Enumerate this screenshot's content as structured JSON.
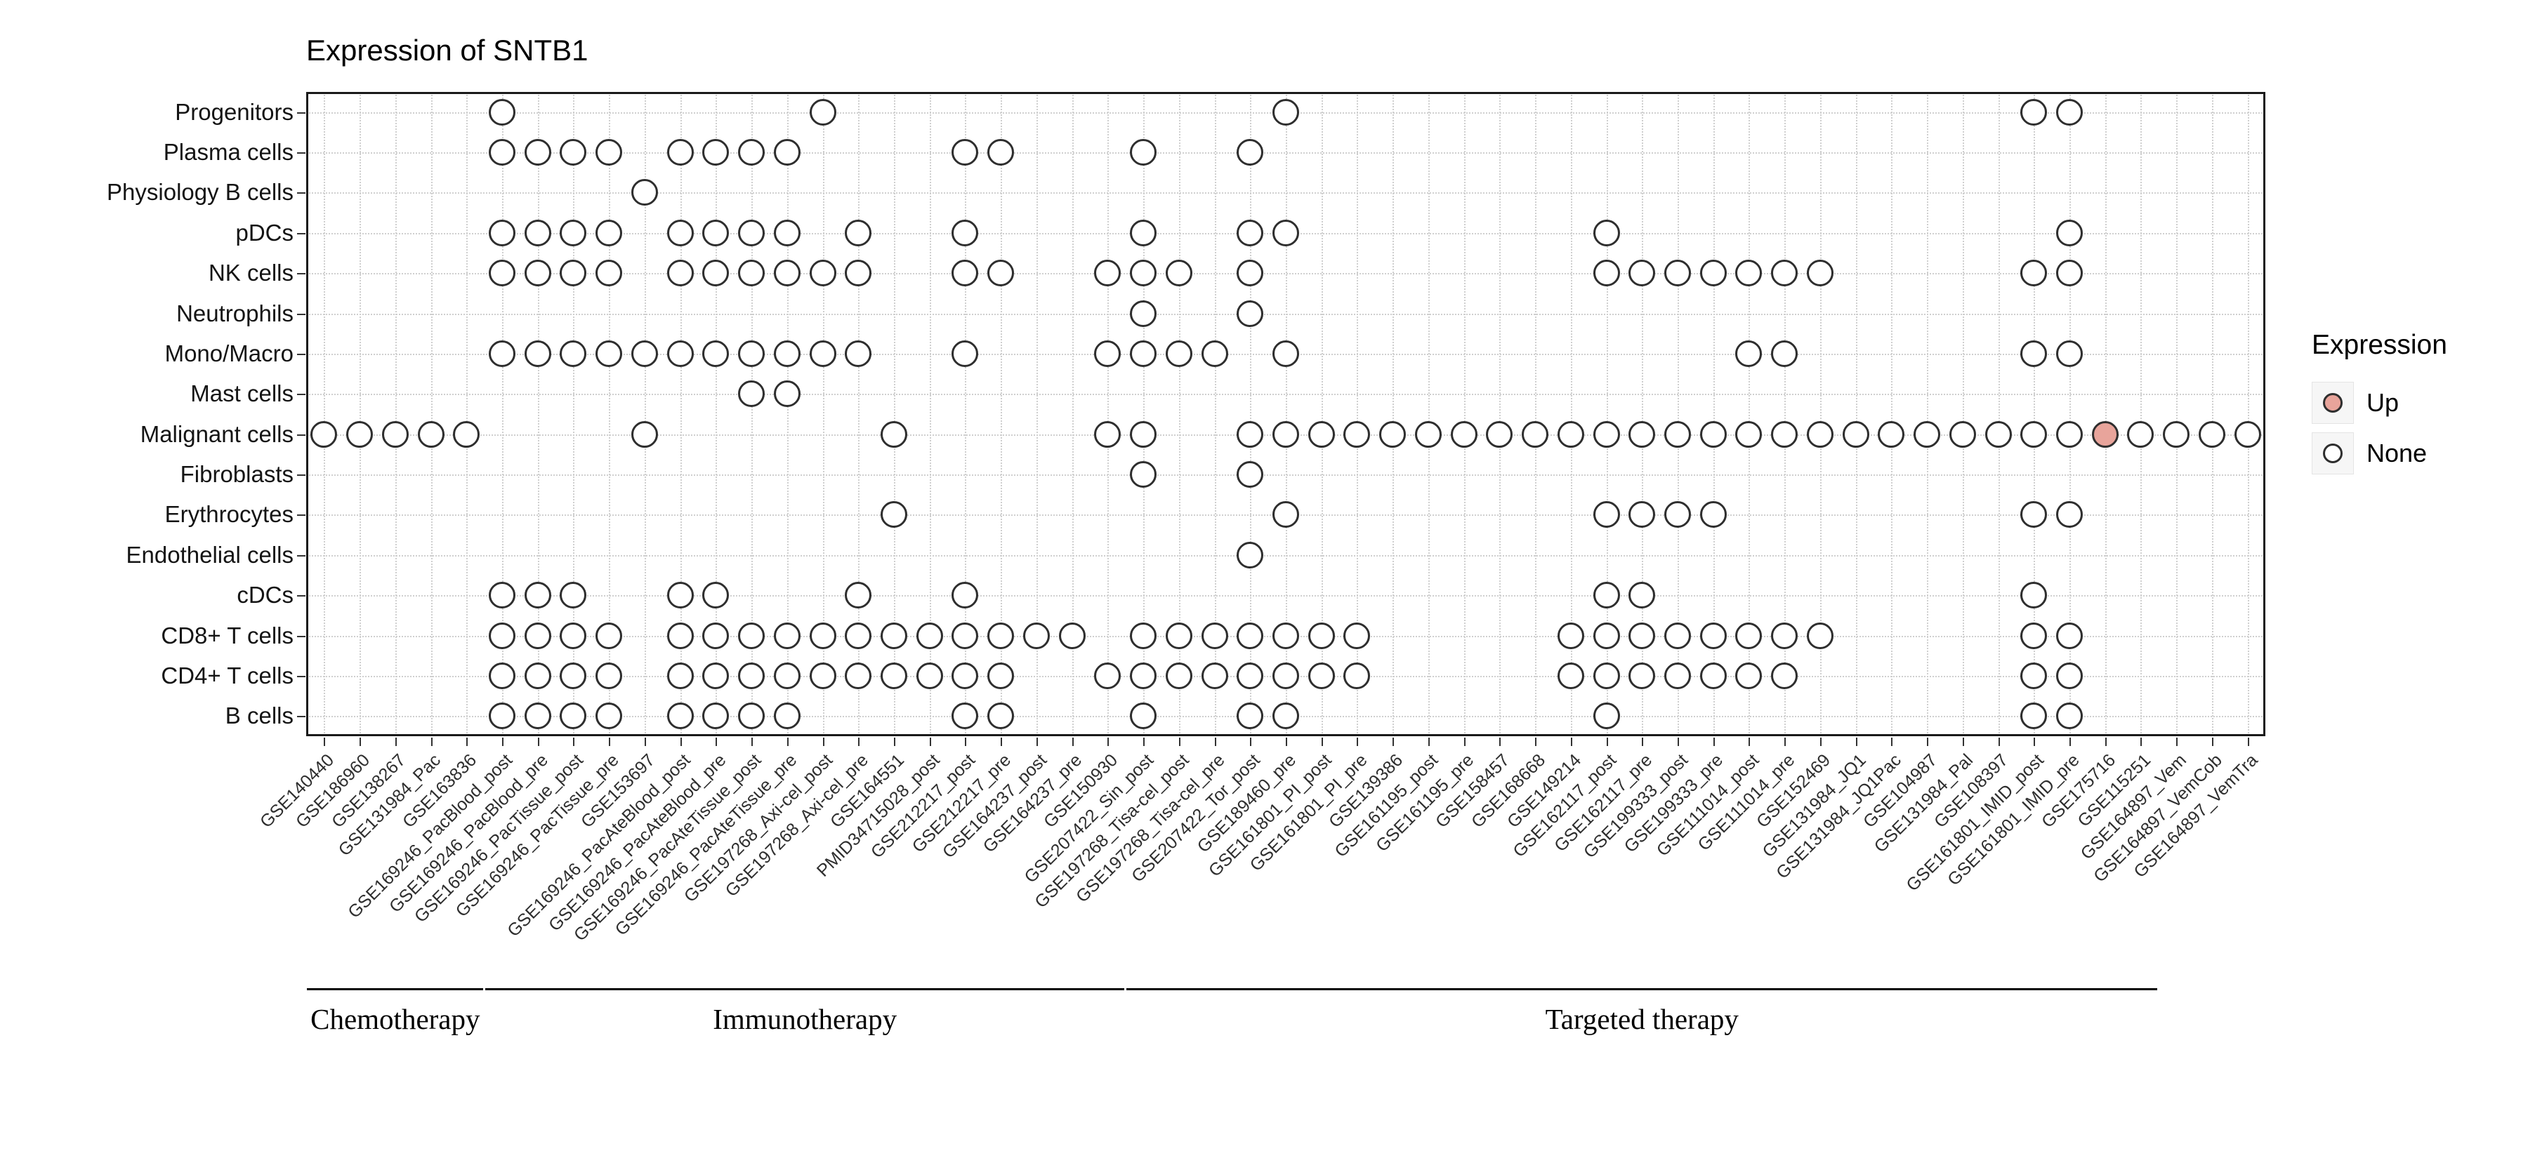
{
  "title": "Expression of SNTB1",
  "legend": {
    "title": "Expression",
    "items": [
      {
        "label": "Up",
        "color": "#E8A49B",
        "filled": true
      },
      {
        "label": "None",
        "color": "#FFFFFF",
        "filled": false
      }
    ]
  },
  "chart_data": {
    "type": "heatmap",
    "subtype": "dot-matrix",
    "title": "Expression of SNTB1",
    "xlabel": "",
    "ylabel": "",
    "grid": true,
    "legend_position": "right",
    "rows": [
      "Progenitors",
      "Plasma cells",
      "Physiology B cells",
      "pDCs",
      "NK cells",
      "Neutrophils",
      "Mono/Macro",
      "Mast cells",
      "Malignant cells",
      "Fibroblasts",
      "Erythrocytes",
      "Endothelial cells",
      "cDCs",
      "CD8+ T cells",
      "CD4+ T cells",
      "B cells"
    ],
    "columns": [
      "GSE140440",
      "GSE186960",
      "GSE138267",
      "GSE131984_Pac",
      "GSE163836",
      "GSE169246_PacBlood_post",
      "GSE169246_PacBlood_pre",
      "GSE169246_PacTissue_post",
      "GSE169246_PacTissue_pre",
      "GSE153697",
      "GSE169246_PacAteBlood_post",
      "GSE169246_PacAteBlood_pre",
      "GSE169246_PacAteTissue_post",
      "GSE169246_PacAteTissue_pre",
      "GSE197268_Axi-cel_post",
      "GSE197268_Axi-cel_pre",
      "GSE164551",
      "PMID34715028_post",
      "GSE212217_post",
      "GSE212217_pre",
      "GSE164237_post",
      "GSE164237_pre",
      "GSE150930",
      "GSE207422_Sin_post",
      "GSE197268_Tisa-cel_post",
      "GSE197268_Tisa-cel_pre",
      "GSE207422_Tor_post",
      "GSE189460_pre",
      "GSE161801_PI_post",
      "GSE161801_PI_pre",
      "GSE139386",
      "GSE161195_post",
      "GSE161195_pre",
      "GSE158457",
      "GSE168668",
      "GSE149214",
      "GSE162117_post",
      "GSE162117_pre",
      "GSE199333_post",
      "GSE199333_pre",
      "GSE111014_post",
      "GSE111014_pre",
      "GSE152469",
      "GSE131984_JQ1",
      "GSE131984_JQ1Pac",
      "GSE104987",
      "GSE131984_Pal",
      "GSE108397",
      "GSE161801_IMID_post",
      "GSE161801_IMID_pre",
      "GSE175716",
      "GSE115251",
      "GSE164897_Vem",
      "GSE164897_VemCob",
      "GSE164897_VemTra"
    ],
    "groups": [
      {
        "label": "Chemotherapy",
        "start": 0,
        "end": 4
      },
      {
        "label": "Immunotherapy",
        "start": 5,
        "end": 22
      },
      {
        "label": "Targeted therapy",
        "start": 23,
        "end": 51
      }
    ],
    "points": {
      "Progenitors": [
        5,
        14,
        27,
        48,
        49
      ],
      "Plasma cells": [
        5,
        6,
        7,
        8,
        10,
        11,
        12,
        13,
        18,
        19,
        23,
        26
      ],
      "Physiology B cells": [
        9
      ],
      "pDCs": [
        5,
        6,
        7,
        8,
        10,
        11,
        12,
        13,
        15,
        18,
        23,
        26,
        27,
        36,
        49
      ],
      "NK cells": [
        5,
        6,
        7,
        8,
        10,
        11,
        12,
        13,
        14,
        15,
        18,
        19,
        22,
        23,
        24,
        26,
        36,
        37,
        38,
        39,
        40,
        41,
        42,
        48,
        49
      ],
      "Neutrophils": [
        23,
        26
      ],
      "Mono/Macro": [
        5,
        6,
        7,
        8,
        9,
        10,
        11,
        12,
        13,
        14,
        15,
        18,
        22,
        23,
        24,
        25,
        27,
        40,
        41,
        48,
        49
      ],
      "Mast cells": [
        12,
        13
      ],
      "Malignant cells": [
        0,
        1,
        2,
        3,
        4,
        9,
        16,
        22,
        23,
        26,
        27,
        28,
        29,
        30,
        31,
        32,
        33,
        34,
        35,
        36,
        37,
        38,
        39,
        40,
        41,
        42,
        43,
        44,
        45,
        46,
        47,
        48,
        49,
        50,
        51,
        52,
        53,
        54
      ],
      "Fibroblasts": [
        23,
        26
      ],
      "Erythrocytes": [
        16,
        27,
        36,
        37,
        38,
        39,
        48,
        49
      ],
      "Endothelial cells": [
        26
      ],
      "cDCs": [
        5,
        6,
        7,
        10,
        11,
        15,
        18,
        36,
        37,
        48
      ],
      "CD8+ T cells": [
        5,
        6,
        7,
        8,
        10,
        11,
        12,
        13,
        14,
        15,
        16,
        17,
        18,
        19,
        20,
        21,
        23,
        24,
        25,
        26,
        27,
        28,
        29,
        35,
        36,
        37,
        38,
        39,
        40,
        41,
        42,
        48,
        49
      ],
      "CD4+ T cells": [
        5,
        6,
        7,
        8,
        10,
        11,
        12,
        13,
        14,
        15,
        16,
        17,
        18,
        19,
        22,
        23,
        24,
        25,
        26,
        27,
        28,
        29,
        35,
        36,
        37,
        38,
        39,
        40,
        41,
        48,
        49
      ],
      "B cells": [
        5,
        6,
        7,
        8,
        10,
        11,
        12,
        13,
        18,
        19,
        23,
        26,
        27,
        36,
        48,
        49
      ]
    },
    "up_points": [
      {
        "row": "Malignant cells",
        "col": 50,
        "column": "GSE175716"
      }
    ],
    "colors": {
      "none_fill": "#FFFFFF",
      "up_fill": "#E8A49B",
      "stroke": "#2E2E2E",
      "grid": "#CFCFCF"
    }
  }
}
